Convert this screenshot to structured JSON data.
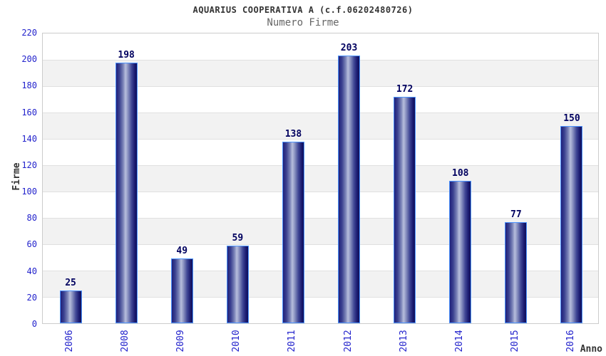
{
  "chart": {
    "title": "AQUARIUS COOPERATIVA A (c.f.06202480726)",
    "subtitle": "Numero Firme",
    "xlabel": "Anno",
    "ylabel": "Firme"
  },
  "chart_data": {
    "type": "bar",
    "title": "AQUARIUS COOPERATIVA A (c.f.06202480726)",
    "subtitle": "Numero Firme",
    "xlabel": "Anno",
    "ylabel": "Firme",
    "categories": [
      "2006",
      "2008",
      "2009",
      "2010",
      "2011",
      "2012",
      "2013",
      "2014",
      "2015",
      "2016"
    ],
    "values": [
      25,
      198,
      49,
      59,
      138,
      203,
      172,
      108,
      77,
      150
    ],
    "ylim": [
      0,
      220
    ],
    "ytick_step": 20,
    "grid": "horizontal-bands-alternating",
    "legend": "none",
    "colors": {
      "bar_dark": "#1a1a70",
      "bar_light": "#b7bedd",
      "bar_border": "#4d94ff",
      "tick_label": "#2323cc",
      "value_label": "#00005f",
      "title": "#333333",
      "subtitle": "#666666",
      "band_gray": "#f2f2f2",
      "plot_border": "#cccccc"
    }
  }
}
